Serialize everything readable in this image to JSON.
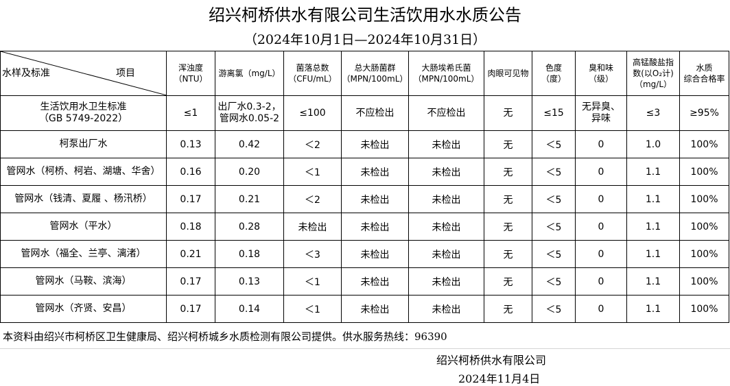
{
  "title": "绍兴柯桥供水有限公司生活饮用水水质公告",
  "subtitle": "（2024年10月1日—2024年10月31日）",
  "corner": {
    "left": "水样及标准",
    "right": "项目"
  },
  "headers": [
    "浑浊度\n（NTU）",
    "游离氯（mg/L）",
    "菌落总数\n（CFU/mL）",
    "总大肠菌群\n（MPN/100mL）",
    "大肠埃希氏菌\n（MPN/100mL）",
    "肉眼可见物",
    "色度\n（度）",
    "臭和味\n（级）",
    "高锰酸盐指\n数(以O₂计)\n（mg/L）",
    "水质\n综合合格率"
  ],
  "standard": {
    "name": "生活饮用水卫生标准\n（GB 5749-2022）",
    "values": [
      "≤1",
      "出厂水0.3-2，\n管网水0.05-2",
      "≤100",
      "不应检出",
      "不应检出",
      "无",
      "≤15",
      "无异臭、\n异味",
      "≤3",
      "≥95%"
    ]
  },
  "rows": [
    {
      "name": "柯泵出厂水",
      "values": [
        "0.13",
        "0.42",
        "＜2",
        "未检出",
        "未检出",
        "无",
        "＜5",
        "0",
        "1.0",
        "100%"
      ]
    },
    {
      "name": "管网水（柯桥、柯岩、湖塘、华舍）",
      "values": [
        "0.16",
        "0.20",
        "＜1",
        "未检出",
        "未检出",
        "无",
        "＜5",
        "0",
        "1.1",
        "100%"
      ]
    },
    {
      "name": "管网水（钱清、夏履 、杨汛桥）",
      "values": [
        "0.17",
        "0.21",
        "＜2",
        "未检出",
        "未检出",
        "无",
        "＜5",
        "0",
        "1.1",
        "100%"
      ]
    },
    {
      "name": "管网水（平水）",
      "values": [
        "0.18",
        "0.28",
        "未检出",
        "未检出",
        "未检出",
        "无",
        "＜5",
        "0",
        "1.1",
        "100%"
      ]
    },
    {
      "name": "管网水（福全、兰亭、漓渚）",
      "values": [
        "0.21",
        "0.18",
        "＜3",
        "未检出",
        "未检出",
        "无",
        "＜5",
        "0",
        "1.1",
        "100%"
      ]
    },
    {
      "name": "管网水（马鞍、滨海）",
      "values": [
        "0.17",
        "0.13",
        "＜1",
        "未检出",
        "未检出",
        "无",
        "＜5",
        "0",
        "1.1",
        "100%"
      ]
    },
    {
      "name": "管网水（齐贤、安昌）",
      "values": [
        "0.17",
        "0.14",
        "＜1",
        "未检出",
        "未检出",
        "无",
        "＜5",
        "0",
        "1.1",
        "100%"
      ]
    }
  ],
  "footnote": "本资料由绍兴市柯桥区卫生健康局、绍兴柯桥城乡水质检测有限公司提供。供水服务热线：96390",
  "company": "绍兴柯桥供水有限公司",
  "date": "2024年11月4日"
}
